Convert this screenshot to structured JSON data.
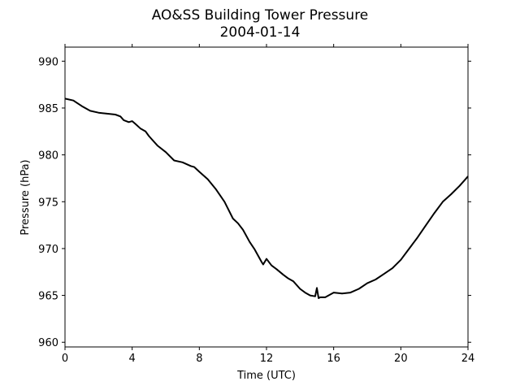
{
  "chart_data": {
    "type": "line",
    "title": "AO&SS Building Tower Pressure",
    "subtitle": "2004-01-14",
    "xlabel": "Time (UTC)",
    "ylabel": "Pressure (hPa)",
    "xlim": [
      0,
      24
    ],
    "ylim": [
      959.5,
      991.5
    ],
    "xticks": [
      0,
      4,
      8,
      12,
      16,
      20,
      24
    ],
    "yticks": [
      960,
      965,
      970,
      975,
      980,
      985,
      990
    ],
    "grid": false,
    "line_color": "#000000",
    "series": [
      {
        "x": [
          0,
          0.5,
          1,
          1.5,
          2,
          2.5,
          3,
          3.3,
          3.5,
          3.8,
          4,
          4.2,
          4.5,
          4.8,
          5,
          5.5,
          6,
          6.5,
          7,
          7.5,
          7.7,
          8,
          8.5,
          9,
          9.5,
          10,
          10.3,
          10.6,
          11,
          11.3,
          11.7,
          11.8,
          12,
          12.3,
          12.6,
          13,
          13.3,
          13.6,
          14,
          14.3,
          14.6,
          14.9,
          15.0,
          15.1,
          15.2,
          15.5,
          16,
          16.5,
          17,
          17.5,
          18,
          18.5,
          19,
          19.5,
          20,
          20.5,
          21,
          21.5,
          22,
          22.5,
          23,
          23.5,
          24
        ],
        "y": [
          986.0,
          985.8,
          985.2,
          984.7,
          984.5,
          984.4,
          984.3,
          984.1,
          983.7,
          983.5,
          983.6,
          983.3,
          982.8,
          982.5,
          982.0,
          981.0,
          980.3,
          979.4,
          979.2,
          978.8,
          978.7,
          978.2,
          977.4,
          976.3,
          975.0,
          973.2,
          972.7,
          972.0,
          970.7,
          969.9,
          968.6,
          968.3,
          968.9,
          968.2,
          967.8,
          967.2,
          966.8,
          966.5,
          965.7,
          965.3,
          965.0,
          964.9,
          965.8,
          964.7,
          964.8,
          964.8,
          965.3,
          965.2,
          965.3,
          965.7,
          966.3,
          966.7,
          967.3,
          967.9,
          968.8,
          970.0,
          971.2,
          972.5,
          973.8,
          975.0,
          975.8,
          976.7,
          977.7
        ]
      }
    ]
  }
}
